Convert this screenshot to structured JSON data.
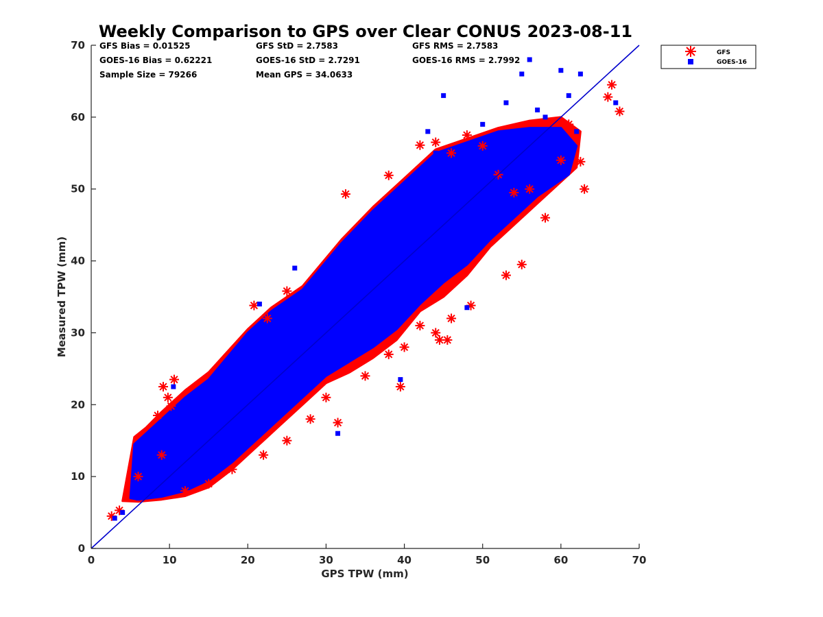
{
  "chart_data": {
    "type": "scatter",
    "title": "Weekly Comparison to GPS over Clear CONUS 2023-08-11",
    "xlabel": "GPS TPW (mm)",
    "ylabel": "Measured TPW (mm)",
    "xlim": [
      0,
      70
    ],
    "ylim": [
      0,
      70
    ],
    "xticks": [
      "0",
      "10",
      "20",
      "30",
      "40",
      "50",
      "60",
      "70"
    ],
    "yticks": [
      "0",
      "10",
      "20",
      "30",
      "40",
      "50",
      "60",
      "70"
    ],
    "grid": false,
    "legend_position": "outside top-right",
    "stats": {
      "row1": [
        "GFS Bias = 0.01525",
        "GFS StD = 2.7583",
        "GFS RMS = 2.7583"
      ],
      "row2": [
        "GOES-16 Bias = 0.62221",
        "GOES-16 StD = 2.7291",
        "GOES-16 RMS = 2.7992"
      ],
      "row3": [
        "Sample Size = 79266",
        "Mean GPS = 34.0633"
      ]
    },
    "reference_line": {
      "x": [
        0,
        70
      ],
      "y": [
        0,
        70
      ],
      "color": "#0000cc"
    },
    "series": [
      {
        "name": "GFS",
        "marker": "asterisk",
        "color": "#ff0000",
        "x": [
          2.6,
          3.6,
          8.5,
          9.2,
          9.8,
          10.6,
          10.2,
          20.8,
          22.5,
          25.0,
          32.5,
          38.0,
          42.0,
          44.0,
          46.0,
          48.0,
          50.0,
          52.0,
          54.0,
          56.0,
          58.0,
          60.0,
          61.0,
          62.5,
          63.0,
          66.0,
          66.5,
          67.5,
          39.5,
          31.5,
          44.5,
          45.5,
          55.0,
          53.0,
          48.5,
          46.0,
          44.0,
          42.0,
          38.0,
          35.0,
          30.0,
          28.0,
          25.0,
          22.0,
          18.0,
          15.0,
          12.0,
          9.0,
          6.0,
          40.0
        ],
        "y": [
          4.5,
          5.3,
          18.5,
          22.5,
          21.0,
          23.5,
          19.8,
          33.8,
          32.0,
          35.8,
          49.3,
          51.9,
          56.1,
          56.5,
          55.0,
          57.5,
          56.0,
          52.0,
          49.5,
          50.0,
          46.0,
          54.0,
          59.0,
          53.8,
          50.0,
          62.8,
          64.5,
          60.8,
          22.5,
          17.5,
          29.0,
          29.0,
          39.5,
          38.0,
          33.8,
          32.0,
          30.0,
          31.0,
          27.0,
          24.0,
          21.0,
          18.0,
          15.0,
          13.0,
          11.0,
          9.0,
          8.0,
          13.0,
          10.0,
          28.0
        ]
      },
      {
        "name": "GOES-16",
        "marker": "square",
        "color": "#0000ff",
        "x": [
          3.0,
          4.0,
          6.0,
          8.0,
          10.5,
          12.0,
          15.0,
          18.0,
          20.0,
          22.0,
          25.0,
          28.0,
          30.0,
          32.0,
          35.0,
          38.0,
          40.0,
          42.0,
          44.0,
          46.0,
          48.0,
          50.0,
          52.0,
          53.0,
          55.0,
          56.0,
          57.0,
          58.0,
          60.0,
          61.0,
          62.0,
          62.5,
          67.0,
          39.5,
          31.5,
          48.0,
          43.0,
          45.0,
          26.0,
          21.5
        ],
        "y": [
          4.2,
          5.0,
          7.0,
          10.0,
          22.5,
          13.0,
          16.0,
          20.0,
          22.0,
          31.0,
          27.0,
          30.0,
          35.0,
          33.0,
          38.0,
          42.0,
          44.0,
          46.0,
          55.0,
          47.0,
          52.0,
          59.0,
          54.0,
          62.0,
          66.0,
          68.0,
          61.0,
          60.0,
          66.5,
          63.0,
          58.0,
          66.0,
          62.0,
          23.5,
          16.0,
          33.5,
          58.0,
          63.0,
          39.0,
          34.0
        ]
      }
    ]
  }
}
